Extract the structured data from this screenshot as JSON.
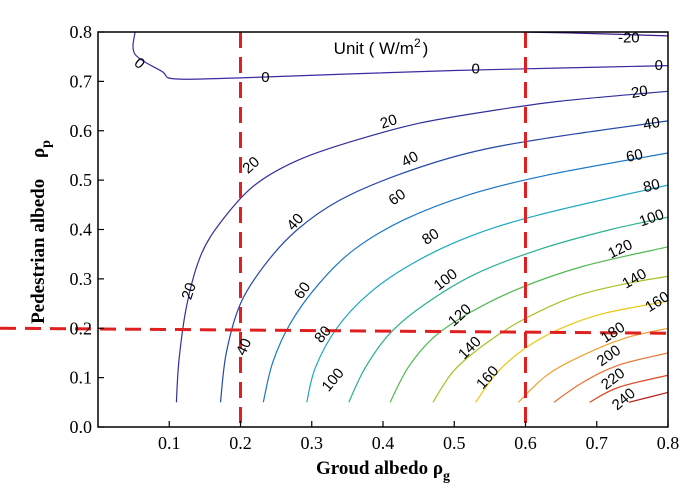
{
  "chart_data": {
    "type": "contour",
    "title": "",
    "annotation": {
      "text": "Unit ( W/m",
      "sup": "2",
      "close": ")"
    },
    "xlabel": {
      "text": "Groud albedo ρ",
      "sub": "g"
    },
    "ylabel": {
      "text": "Pedestrian albedo ",
      "sym": "ρ",
      "sub": "p"
    },
    "xlim": [
      0,
      0.8
    ],
    "ylim": [
      0,
      0.8
    ],
    "xticks": [
      "0.1",
      "0.2",
      "0.3",
      "0.4",
      "0.5",
      "0.6",
      "0.7",
      "0.8"
    ],
    "yticks": [
      "0.0",
      "0.1",
      "0.2",
      "0.3",
      "0.4",
      "0.5",
      "0.6",
      "0.7",
      "0.8"
    ],
    "reference_lines": {
      "vertical_x": [
        0.2,
        0.6
      ],
      "horizontal_y": [
        0.2
      ],
      "color": "#e02020"
    },
    "contours": [
      {
        "level": -20,
        "color": "#3a1a88",
        "points": [
          [
            0.595,
            0.8
          ],
          [
            0.69,
            0.797
          ],
          [
            0.8,
            0.792
          ]
        ]
      },
      {
        "level": 0,
        "color": "#3a2aa0",
        "points": [
          [
            0.052,
            0.8
          ],
          [
            0.052,
            0.755
          ],
          [
            0.09,
            0.72
          ],
          [
            0.108,
            0.705
          ],
          [
            0.2,
            0.707
          ],
          [
            0.35,
            0.715
          ],
          [
            0.5,
            0.722
          ],
          [
            0.65,
            0.727
          ],
          [
            0.8,
            0.732
          ]
        ]
      },
      {
        "level": 20,
        "color": "#30309a",
        "points": [
          [
            0.11,
            0.05
          ],
          [
            0.114,
            0.14
          ],
          [
            0.125,
            0.25
          ],
          [
            0.145,
            0.35
          ],
          [
            0.175,
            0.42
          ],
          [
            0.22,
            0.49
          ],
          [
            0.28,
            0.54
          ],
          [
            0.36,
            0.58
          ],
          [
            0.45,
            0.615
          ],
          [
            0.55,
            0.64
          ],
          [
            0.65,
            0.66
          ],
          [
            0.8,
            0.68
          ]
        ]
      },
      {
        "level": 40,
        "color": "#2548a8",
        "points": [
          [
            0.172,
            0.05
          ],
          [
            0.18,
            0.15
          ],
          [
            0.2,
            0.25
          ],
          [
            0.235,
            0.33
          ],
          [
            0.28,
            0.4
          ],
          [
            0.34,
            0.46
          ],
          [
            0.42,
            0.51
          ],
          [
            0.52,
            0.555
          ],
          [
            0.63,
            0.585
          ],
          [
            0.8,
            0.62
          ]
        ]
      },
      {
        "level": 60,
        "color": "#1b78c8",
        "points": [
          [
            0.232,
            0.05
          ],
          [
            0.245,
            0.13
          ],
          [
            0.27,
            0.21
          ],
          [
            0.31,
            0.29
          ],
          [
            0.36,
            0.36
          ],
          [
            0.43,
            0.42
          ],
          [
            0.52,
            0.47
          ],
          [
            0.63,
            0.51
          ],
          [
            0.8,
            0.555
          ]
        ]
      },
      {
        "level": 80,
        "color": "#1aa7c0",
        "points": [
          [
            0.293,
            0.05
          ],
          [
            0.305,
            0.12
          ],
          [
            0.335,
            0.2
          ],
          [
            0.38,
            0.27
          ],
          [
            0.44,
            0.33
          ],
          [
            0.52,
            0.385
          ],
          [
            0.62,
            0.43
          ],
          [
            0.8,
            0.49
          ]
        ]
      },
      {
        "level": 100,
        "color": "#28b090",
        "points": [
          [
            0.352,
            0.05
          ],
          [
            0.375,
            0.12
          ],
          [
            0.41,
            0.19
          ],
          [
            0.46,
            0.25
          ],
          [
            0.53,
            0.31
          ],
          [
            0.62,
            0.36
          ],
          [
            0.72,
            0.4
          ],
          [
            0.8,
            0.425
          ]
        ]
      },
      {
        "level": 120,
        "color": "#50b850",
        "points": [
          [
            0.41,
            0.05
          ],
          [
            0.435,
            0.12
          ],
          [
            0.47,
            0.18
          ],
          [
            0.52,
            0.23
          ],
          [
            0.59,
            0.28
          ],
          [
            0.68,
            0.325
          ],
          [
            0.8,
            0.365
          ]
        ]
      },
      {
        "level": 140,
        "color": "#a8c020",
        "points": [
          [
            0.47,
            0.05
          ],
          [
            0.5,
            0.115
          ],
          [
            0.545,
            0.17
          ],
          [
            0.6,
            0.22
          ],
          [
            0.67,
            0.265
          ],
          [
            0.74,
            0.29
          ],
          [
            0.8,
            0.305
          ]
        ]
      },
      {
        "level": 160,
        "color": "#e8c810",
        "points": [
          [
            0.53,
            0.05
          ],
          [
            0.56,
            0.11
          ],
          [
            0.6,
            0.16
          ],
          [
            0.65,
            0.2
          ],
          [
            0.71,
            0.23
          ],
          [
            0.8,
            0.255
          ]
        ]
      },
      {
        "level": 180,
        "color": "#f0a030",
        "points": [
          [
            0.59,
            0.05
          ],
          [
            0.63,
            0.105
          ],
          [
            0.68,
            0.145
          ],
          [
            0.74,
            0.18
          ],
          [
            0.8,
            0.2
          ]
        ]
      },
      {
        "level": 200,
        "color": "#e87030",
        "points": [
          [
            0.64,
            0.05
          ],
          [
            0.68,
            0.09
          ],
          [
            0.73,
            0.125
          ],
          [
            0.8,
            0.15
          ]
        ]
      },
      {
        "level": 220,
        "color": "#e04525",
        "points": [
          [
            0.69,
            0.05
          ],
          [
            0.73,
            0.08
          ],
          [
            0.8,
            0.105
          ]
        ]
      },
      {
        "level": 240,
        "color": "#b81818",
        "points": [
          [
            0.745,
            0.05
          ],
          [
            0.8,
            0.07
          ]
        ]
      }
    ],
    "contour_labels": [
      {
        "text": "-20",
        "x": 0.745,
        "y": 0.788,
        "angle": 0
      },
      {
        "text": "0",
        "x": 0.058,
        "y": 0.736,
        "angle": 42
      },
      {
        "text": "0",
        "x": 0.235,
        "y": 0.708,
        "angle": 0
      },
      {
        "text": "0",
        "x": 0.53,
        "y": 0.725,
        "angle": 0
      },
      {
        "text": "0",
        "x": 0.787,
        "y": 0.732,
        "angle": 0
      },
      {
        "text": "20",
        "x": 0.128,
        "y": 0.275,
        "angle": -72
      },
      {
        "text": "20",
        "x": 0.215,
        "y": 0.53,
        "angle": -42
      },
      {
        "text": "20",
        "x": 0.408,
        "y": 0.618,
        "angle": -18
      },
      {
        "text": "20",
        "x": 0.76,
        "y": 0.678,
        "angle": -10
      },
      {
        "text": "40",
        "x": 0.205,
        "y": 0.162,
        "angle": -65
      },
      {
        "text": "40",
        "x": 0.277,
        "y": 0.415,
        "angle": -48
      },
      {
        "text": "40",
        "x": 0.438,
        "y": 0.542,
        "angle": -28
      },
      {
        "text": "40",
        "x": 0.777,
        "y": 0.614,
        "angle": -10
      },
      {
        "text": "60",
        "x": 0.287,
        "y": 0.276,
        "angle": -55
      },
      {
        "text": "60",
        "x": 0.42,
        "y": 0.465,
        "angle": -35
      },
      {
        "text": "60",
        "x": 0.753,
        "y": 0.549,
        "angle": -12
      },
      {
        "text": "80",
        "x": 0.316,
        "y": 0.187,
        "angle": -50
      },
      {
        "text": "80",
        "x": 0.467,
        "y": 0.385,
        "angle": -33
      },
      {
        "text": "80",
        "x": 0.777,
        "y": 0.488,
        "angle": -14
      },
      {
        "text": "100",
        "x": 0.33,
        "y": 0.095,
        "angle": -50
      },
      {
        "text": "100",
        "x": 0.488,
        "y": 0.298,
        "angle": -38
      },
      {
        "text": "100",
        "x": 0.777,
        "y": 0.423,
        "angle": -20
      },
      {
        "text": "120",
        "x": 0.508,
        "y": 0.226,
        "angle": -42
      },
      {
        "text": "120",
        "x": 0.733,
        "y": 0.36,
        "angle": -26
      },
      {
        "text": "140",
        "x": 0.522,
        "y": 0.16,
        "angle": -45
      },
      {
        "text": "140",
        "x": 0.753,
        "y": 0.3,
        "angle": -30
      },
      {
        "text": "160",
        "x": 0.547,
        "y": 0.1,
        "angle": -48
      },
      {
        "text": "160",
        "x": 0.785,
        "y": 0.253,
        "angle": -32
      },
      {
        "text": "180",
        "x": 0.723,
        "y": 0.191,
        "angle": -33
      },
      {
        "text": "200",
        "x": 0.717,
        "y": 0.144,
        "angle": -35
      },
      {
        "text": "220",
        "x": 0.723,
        "y": 0.097,
        "angle": -37
      },
      {
        "text": "240",
        "x": 0.738,
        "y": 0.056,
        "angle": -40
      }
    ]
  }
}
